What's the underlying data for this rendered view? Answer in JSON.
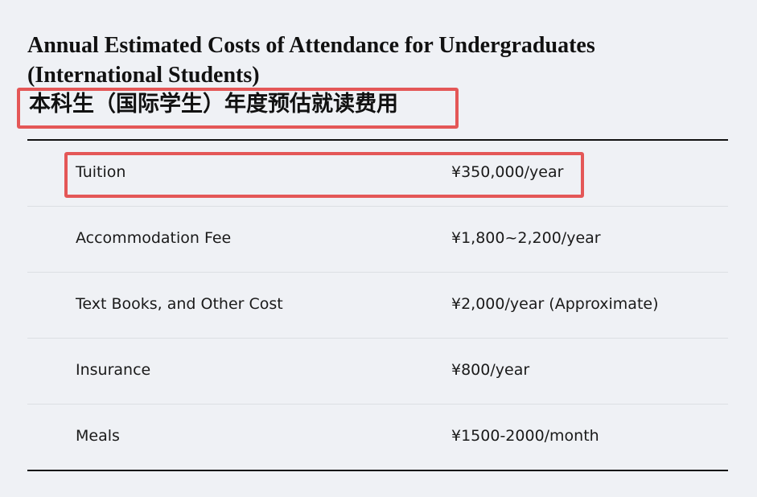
{
  "title_en": "Annual Estimated Costs of Attendance for Undergraduates (International Students)",
  "title_zh": "本科生（国际学生）年度预估就读费用",
  "highlight_color": "#e45757",
  "rows": [
    {
      "item": "Tuition",
      "cost": "¥350,000/year"
    },
    {
      "item": "Accommodation Fee",
      "cost": "¥1,800~2,200/year"
    },
    {
      "item": "Text Books, and Other Cost",
      "cost": "¥2,000/year (Approximate)"
    },
    {
      "item": "Insurance",
      "cost": "¥800/year"
    },
    {
      "item": "Meals",
      "cost": "¥1500-2000/month"
    }
  ]
}
